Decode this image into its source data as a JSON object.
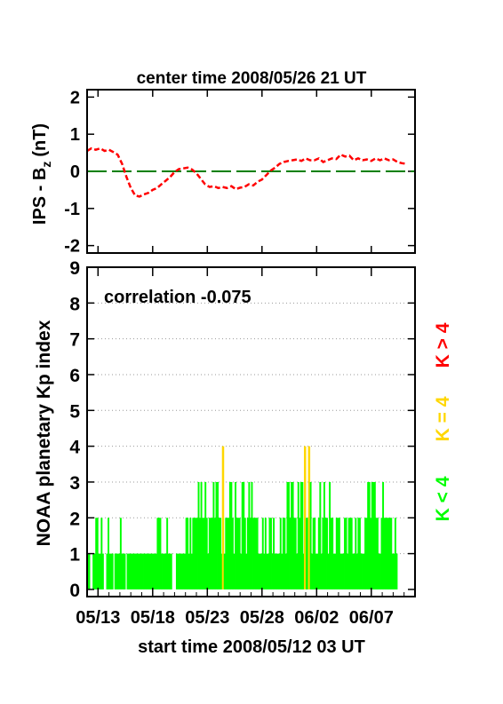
{
  "chart_data": [
    {
      "type": "line",
      "title": "center time 2008/05/26 21 UT",
      "ylabel": "IPS - B",
      "ylabel_sub": "z",
      "ylabel_unit": "(nT)",
      "ylim": [
        -2.2,
        2.2
      ],
      "yticks": [
        "2",
        "1",
        "0",
        "-1",
        "-2"
      ],
      "ytick_values": [
        2,
        1,
        0,
        -1,
        -2
      ],
      "xlim": [
        0,
        30
      ],
      "zero_line_color": "#008000",
      "series": [
        {
          "color": "#ff0000",
          "style": "dashed",
          "x": [
            0,
            0.4,
            0.8,
            1.2,
            1.6,
            2.0,
            2.4,
            2.8,
            3.2,
            3.6,
            4.0,
            4.4,
            4.8,
            5.2,
            5.6,
            6.0,
            6.4,
            6.8,
            7.2,
            7.6,
            8.0,
            8.4,
            8.8,
            9.2,
            9.6,
            10.0,
            10.4,
            10.8,
            11.2,
            11.6,
            12.0,
            12.4,
            12.8,
            13.2,
            13.6,
            14.0,
            14.4,
            14.8,
            15.2,
            15.6,
            16.0,
            16.4,
            16.8,
            17.2,
            17.6,
            18.0,
            18.4,
            18.8,
            19.2,
            19.6,
            20.0,
            20.4,
            20.8,
            21.2,
            21.6,
            22.0,
            22.4,
            22.8,
            23.2,
            23.6,
            24.0,
            24.4,
            24.8,
            25.2,
            25.6,
            26.0,
            26.4,
            26.8,
            27.2,
            27.6,
            28.0,
            28.4,
            28.8,
            29.2
          ],
          "y": [
            0.55,
            0.62,
            0.58,
            0.62,
            0.55,
            0.58,
            0.52,
            0.45,
            0.2,
            -0.15,
            -0.45,
            -0.65,
            -0.68,
            -0.62,
            -0.58,
            -0.5,
            -0.45,
            -0.35,
            -0.25,
            -0.15,
            -0.02,
            0.06,
            0.08,
            0.1,
            0.05,
            -0.05,
            -0.2,
            -0.35,
            -0.42,
            -0.4,
            -0.45,
            -0.42,
            -0.45,
            -0.4,
            -0.48,
            -0.44,
            -0.42,
            -0.35,
            -0.38,
            -0.28,
            -0.22,
            -0.1,
            0.02,
            0.1,
            0.2,
            0.25,
            0.28,
            0.3,
            0.32,
            0.28,
            0.35,
            0.3,
            0.3,
            0.35,
            0.25,
            0.3,
            0.35,
            0.33,
            0.45,
            0.4,
            0.42,
            0.3,
            0.35,
            0.3,
            0.32,
            0.28,
            0.35,
            0.3,
            0.35,
            0.3,
            0.32,
            0.25,
            0.22,
            0.2
          ]
        }
      ]
    },
    {
      "type": "bar",
      "ylabel": "NOAA planetary Kp index",
      "xlabel": "start time 2008/05/12 03 UT",
      "annotation": "correlation -0.075",
      "ylim": [
        -0.2,
        9
      ],
      "yticks": [
        "9",
        "8",
        "7",
        "6",
        "5",
        "4",
        "3",
        "2",
        "1",
        "0"
      ],
      "ytick_values": [
        9,
        8,
        7,
        6,
        5,
        4,
        3,
        2,
        1,
        0
      ],
      "grid": "dotted",
      "xlim": [
        0,
        30
      ],
      "xticks": [
        "05/13",
        "05/18",
        "05/23",
        "05/28",
        "06/02",
        "06/07"
      ],
      "xtick_values": [
        1,
        6,
        11,
        16,
        21,
        26
      ],
      "legend": [
        {
          "label": "K < 4",
          "color": "#00ff00"
        },
        {
          "label": "K = 4",
          "color": "#ffd700"
        },
        {
          "label": "K > 4",
          "color": "#ff0000"
        }
      ],
      "bar_color_low": "#00ff00",
      "bar_color_eq": "#ffd700",
      "kp_step_days": 0.125,
      "kp": [
        1,
        1,
        0,
        0,
        1,
        1,
        2,
        2,
        1,
        1,
        2,
        1,
        0,
        0,
        1,
        2,
        1,
        1,
        1,
        0,
        1,
        1,
        1,
        1,
        2,
        1,
        1,
        1,
        0,
        1,
        1,
        1,
        1,
        1,
        1,
        1,
        1,
        1,
        1,
        1,
        1,
        1,
        1,
        1,
        1,
        1,
        1,
        1,
        1,
        1,
        1,
        2,
        2,
        2,
        1,
        1,
        1,
        1,
        2,
        1,
        1,
        1,
        0,
        0,
        0,
        1,
        1,
        1,
        1,
        1,
        1,
        1,
        2,
        2,
        1,
        2,
        1,
        2,
        2,
        2,
        2,
        3,
        2,
        3,
        2,
        2,
        3,
        2,
        1,
        2,
        2,
        2,
        3,
        2,
        3,
        3,
        2,
        2,
        1,
        4,
        1,
        2,
        2,
        2,
        3,
        3,
        2,
        1,
        3,
        2,
        2,
        2,
        1,
        3,
        3,
        2,
        1,
        2,
        3,
        2,
        3,
        2,
        2,
        2,
        2,
        1,
        1,
        1,
        2,
        1,
        2,
        1,
        1,
        2,
        2,
        1,
        2,
        1,
        1,
        1,
        1,
        2,
        1,
        2,
        2,
        1,
        3,
        3,
        2,
        3,
        3,
        2,
        2,
        1,
        3,
        2,
        3,
        3,
        1,
        4,
        2,
        2,
        4,
        3,
        1,
        2,
        2,
        1,
        1,
        2,
        3,
        1,
        2,
        3,
        2,
        2,
        1,
        3,
        2,
        2,
        1,
        1,
        2,
        2,
        2,
        1,
        1,
        1,
        2,
        2,
        1,
        2,
        2,
        2,
        1,
        1,
        2,
        1,
        2,
        2,
        1,
        1,
        1,
        2,
        2,
        3,
        3,
        2,
        3,
        3,
        3,
        2,
        2,
        1,
        1,
        2,
        3,
        2,
        2,
        2,
        2,
        2,
        2,
        1,
        1,
        2,
        1,
        0
      ]
    }
  ]
}
